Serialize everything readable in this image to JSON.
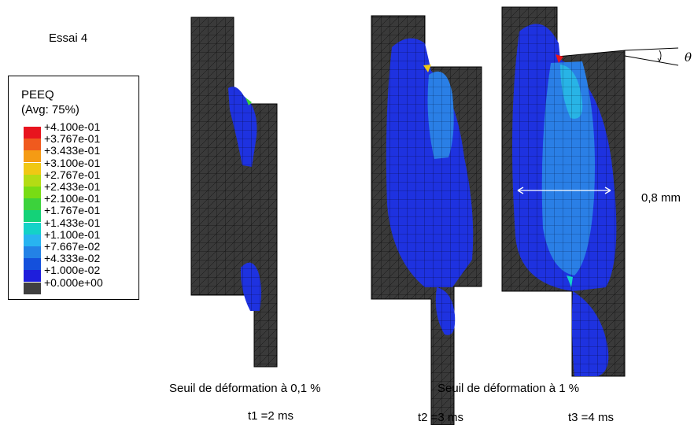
{
  "test_label": "Essai 4",
  "legend": {
    "title": "PEEQ",
    "subtitle": "(Avg: 75%)",
    "entries": [
      {
        "value": "+4.100e-01",
        "color": "#e8141e"
      },
      {
        "value": "+3.767e-01",
        "color": "#f05a1e"
      },
      {
        "value": "+3.433e-01",
        "color": "#f59b14"
      },
      {
        "value": "+3.100e-01",
        "color": "#f0c814"
      },
      {
        "value": "+2.767e-01",
        "color": "#b4dc14"
      },
      {
        "value": "+2.433e-01",
        "color": "#78dc14"
      },
      {
        "value": "+2.100e-01",
        "color": "#3cd23c"
      },
      {
        "value": "+1.767e-01",
        "color": "#14d278"
      },
      {
        "value": "+1.433e-01",
        "color": "#14d2c8"
      },
      {
        "value": "+1.100e-01",
        "color": "#28b4f0"
      },
      {
        "value": "+7.667e-02",
        "color": "#2382e6"
      },
      {
        "value": "+4.333e-02",
        "color": "#1450dc"
      },
      {
        "value": "+1.000e-02",
        "color": "#1e1edc"
      },
      {
        "value": "+0.000e+00",
        "color": "#404040"
      }
    ]
  },
  "angle_symbol": "θ",
  "width_label": "0,8 mm",
  "threshold_low": "Seuil de déformation à 0,1 %",
  "threshold_high": "Seuil de déformation à 1 %",
  "times": {
    "t1": "t1 =2 ms",
    "t2": "t2 =3 ms",
    "t3": "t3 =4 ms"
  },
  "colors": {
    "background": "#ffffff",
    "mesh_gray": "#3a3a3a",
    "mesh_line": "#111111",
    "blue_zone": "#1e32e0",
    "light_blue_zone": "#2a7fe6",
    "cyan_zone": "#28b4e6"
  }
}
